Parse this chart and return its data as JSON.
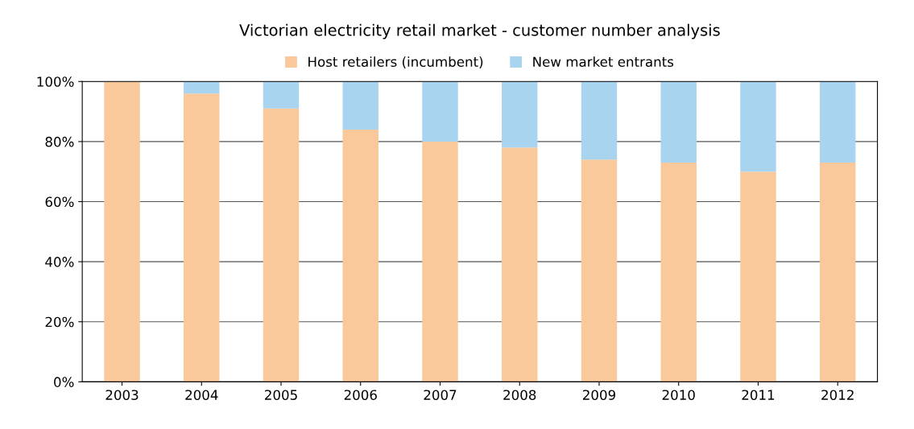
{
  "chart_data": {
    "type": "bar",
    "title": "Victorian electricity retail market - customer number analysis",
    "categories": [
      "2003",
      "2004",
      "2005",
      "2006",
      "2007",
      "2008",
      "2009",
      "2010",
      "2011",
      "2012"
    ],
    "stacked": true,
    "series": [
      {
        "name": "Host retailers (incumbent)",
        "color": "#f9c89b",
        "values": [
          100,
          96,
          91,
          84,
          80,
          78,
          74,
          73,
          70,
          73
        ]
      },
      {
        "name": "New market entrants",
        "color": "#a9d4ef",
        "values": [
          0,
          4,
          9,
          16,
          20,
          22,
          26,
          27,
          30,
          27
        ]
      }
    ],
    "ylim": [
      0,
      100
    ],
    "yticks": [
      {
        "value": 0,
        "label": "0%"
      },
      {
        "value": 20,
        "label": "20%"
      },
      {
        "value": 40,
        "label": "40%"
      },
      {
        "value": 60,
        "label": "60%"
      },
      {
        "value": 80,
        "label": "80%"
      },
      {
        "value": 100,
        "label": "100%"
      }
    ],
    "grid": "y",
    "legend": "top"
  }
}
